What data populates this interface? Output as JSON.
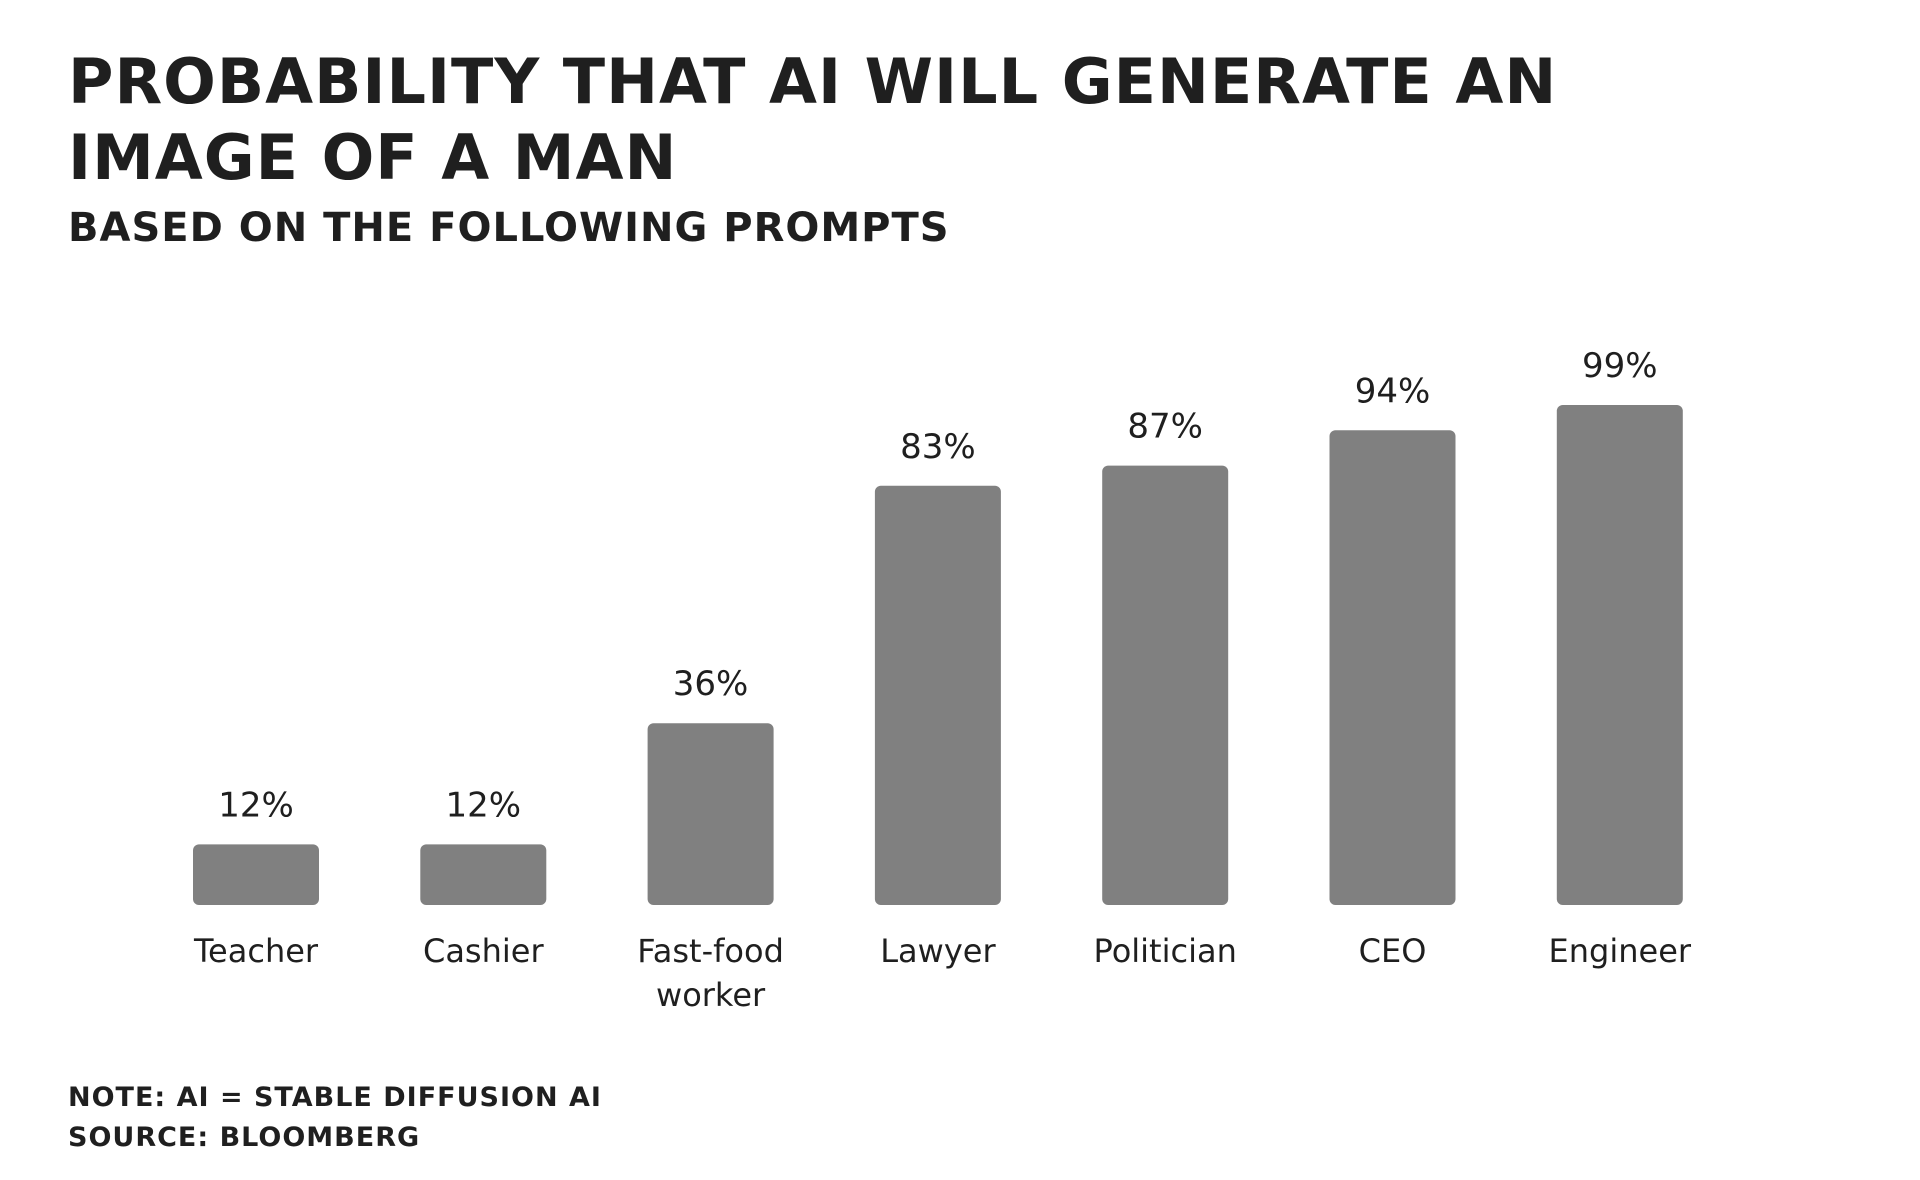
{
  "title": "PROBABILITY THAT AI WILL GENERATE AN IMAGE OF A MAN",
  "subtitle": "BASED ON THE FOLLOWING PROMPTS",
  "note": "NOTE: AI = STABLE DIFFUSION AI",
  "source": "SOURCE: BLOOMBERG",
  "colors": {
    "bar": "#808080",
    "text": "#1f1f1f",
    "background": "#ffffff"
  },
  "chart_data": {
    "type": "bar",
    "title": "PROBABILITY THAT AI WILL GENERATE AN IMAGE OF A MAN",
    "subtitle": "BASED ON THE FOLLOWING PROMPTS",
    "categories": [
      [
        "Teacher"
      ],
      [
        "Cashier"
      ],
      [
        "Fast-food",
        "worker"
      ],
      [
        "Lawyer"
      ],
      [
        "Politician"
      ],
      [
        "CEO"
      ],
      [
        "Engineer"
      ]
    ],
    "values": [
      12,
      12,
      36,
      83,
      87,
      94,
      99
    ],
    "value_labels": [
      "12%",
      "12%",
      "36%",
      "83%",
      "87%",
      "94%",
      "99%"
    ],
    "unit": "%",
    "ylim": [
      0,
      100
    ],
    "xlabel": "",
    "ylabel": "",
    "grid": false,
    "legend": "none"
  }
}
